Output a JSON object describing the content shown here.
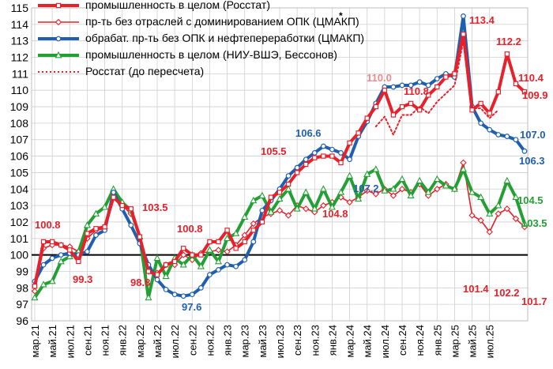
{
  "chart_data": {
    "type": "line",
    "x_labels": [
      "мар.21",
      "май.21",
      "июл.21",
      "сен.21",
      "ноя.21",
      "янв.22",
      "мар.22",
      "май.22",
      "июл.22",
      "сен.22",
      "ноя.22",
      "янв.23",
      "мар.23",
      "май.23",
      "июл.23",
      "сен.23",
      "ноя.23",
      "янв.24",
      "мар.24",
      "май.24",
      "июл.24",
      "сен.24",
      "ноя.24",
      "янв.25",
      "мар.25",
      "май.25",
      "июл.25"
    ],
    "ylim": [
      96,
      115
    ],
    "yticks": [
      96,
      97,
      98,
      99,
      100,
      101,
      102,
      103,
      104,
      105,
      106,
      107,
      108,
      109,
      110,
      111,
      112,
      113,
      114,
      115
    ],
    "grid": true,
    "reference_line": 100,
    "legend_position": "top-left",
    "series": [
      {
        "name": "промышленность в целом (Росстат)",
        "color": "#e8202a",
        "style": "solid-thick",
        "marker": "square",
        "values": [
          98.1,
          100.8,
          100.8,
          100.6,
          100.3,
          99.6,
          101.3,
          101.6,
          101.7,
          103.5,
          103.0,
          102.8,
          101.1,
          99.0,
          98.8,
          99.4,
          99.6,
          100.4,
          100.0,
          100.0,
          100.8,
          100.8,
          101.5,
          100.4,
          100.8,
          101.5,
          102.0,
          103.5,
          103.8,
          104.3,
          105.0,
          105.5,
          105.9,
          106.0,
          106.0,
          105.6,
          106.8,
          107.4,
          108.3,
          109.0,
          110.0,
          108.5,
          109.0,
          109.2,
          108.8,
          109.7,
          110.2,
          110.8,
          111.0,
          113.4,
          108.8,
          109.2,
          108.6,
          109.9,
          112.2,
          110.4,
          109.9
        ]
      },
      {
        "name": "пр-ть без отраслей с доминированием ОПК (ЦМАКП)",
        "color": "#e8202a",
        "style": "solid-thin",
        "marker": "diamond",
        "values": [
          97.8,
          100.4,
          100.6,
          100.6,
          100.5,
          100.2,
          101.0,
          101.5,
          101.6,
          103.7,
          103.0,
          102.5,
          101.0,
          99.0,
          98.9,
          99.4,
          99.4,
          100.0,
          99.7,
          100.1,
          100.2,
          100.3,
          100.2,
          100.6,
          101.2,
          101.9,
          102.3,
          102.5,
          102.7,
          102.4,
          103.0,
          102.8,
          102.6,
          103.0,
          103.2,
          103.5,
          103.2,
          103.5,
          103.9,
          103.7,
          104.0,
          103.6,
          104.0,
          103.8,
          104.3,
          103.6,
          104.0,
          104.3,
          104.0,
          105.6,
          102.4,
          102.1,
          101.4,
          102.5,
          102.8,
          102.2,
          101.7
        ]
      },
      {
        "name": "обрабат. пр-ть без ОПК и нефтепереработки (ЦМАКП)",
        "color": "#1f5fb0",
        "style": "solid-thick",
        "marker": "circle",
        "values": [
          98.4,
          99.4,
          99.8,
          100.0,
          100.1,
          100.0,
          100.2,
          101.2,
          101.5,
          103.8,
          102.8,
          101.8,
          100.7,
          99.4,
          98.5,
          97.9,
          97.6,
          97.5,
          97.6,
          98.0,
          98.8,
          99.1,
          99.4,
          99.3,
          99.7,
          100.8,
          102.7,
          103.3,
          104.0,
          104.8,
          105.3,
          105.8,
          106.2,
          106.6,
          106.4,
          106.2,
          105.8,
          107.2,
          108.1,
          109.2,
          110.2,
          110.2,
          110.3,
          110.3,
          110.5,
          110.3,
          110.7,
          111.0,
          110.8,
          114.5,
          109.0,
          108.0,
          107.6,
          107.3,
          107.2,
          107.0,
          106.3
        ]
      },
      {
        "name": "промышленность в целом (НИУ-ВШЭ, Бессонов)",
        "color": "#22a033",
        "style": "solid-thick",
        "marker": "triangle",
        "values": [
          97.4,
          98.2,
          98.4,
          99.6,
          99.9,
          100.2,
          101.8,
          102.5,
          102.9,
          104.0,
          103.2,
          102.7,
          101.1,
          97.4,
          99.8,
          98.7,
          99.8,
          99.4,
          100.0,
          99.3,
          100.3,
          99.6,
          101.0,
          101.3,
          102.3,
          103.3,
          103.6,
          102.6,
          103.4,
          104.0,
          102.8,
          103.8,
          102.8,
          104.0,
          102.9,
          103.8,
          104.8,
          103.4,
          104.9,
          105.2,
          103.9,
          104.0,
          104.6,
          103.6,
          104.5,
          103.8,
          104.6,
          104.2,
          104.0,
          105.2,
          103.8,
          103.5,
          102.5,
          103.0,
          104.5,
          103.5,
          101.9
        ]
      },
      {
        "name": "Росстат (до пересчета)",
        "color": "#e8202a",
        "style": "dotted",
        "marker": "none",
        "values": [
          null,
          null,
          null,
          null,
          null,
          null,
          null,
          null,
          null,
          null,
          null,
          null,
          null,
          null,
          null,
          null,
          null,
          null,
          null,
          null,
          null,
          null,
          null,
          null,
          null,
          null,
          null,
          null,
          null,
          null,
          null,
          null,
          null,
          null,
          null,
          null,
          null,
          null,
          null,
          107.8,
          108.4,
          107.3,
          108.5,
          108.5,
          109.0,
          108.6,
          109.3,
          109.8,
          110.3,
          113.0,
          108.9,
          108.9,
          108.3,
          108.8,
          null,
          null,
          null
        ]
      }
    ],
    "data_labels": [
      {
        "text": "100.8",
        "color": "#e8202a"
      },
      {
        "text": "99.3",
        "color": "#e8202a"
      },
      {
        "text": "103.5",
        "color": "#e8202a"
      },
      {
        "text": "98.8",
        "color": "#e8202a"
      },
      {
        "text": "100.8",
        "color": "#e8202a"
      },
      {
        "text": "97.6",
        "color": "#1f5fb0"
      },
      {
        "text": "105.5",
        "color": "#e8202a"
      },
      {
        "text": "106.6",
        "color": "#1f5fb0"
      },
      {
        "text": "104.8",
        "color": "#e8202a"
      },
      {
        "text": "107.2",
        "color": "#1f5fb0"
      },
      {
        "text": "110.0",
        "color": "#f08a8a"
      },
      {
        "text": "110.8",
        "color": "#e8202a"
      },
      {
        "text": "113.4",
        "color": "#e8202a"
      },
      {
        "text": "112.2",
        "color": "#e8202a"
      },
      {
        "text": "110.4",
        "color": "#e8202a"
      },
      {
        "text": "109.9",
        "color": "#e8202a"
      },
      {
        "text": "107.0",
        "color": "#1f5fb0"
      },
      {
        "text": "106.3",
        "color": "#1f5fb0"
      },
      {
        "text": "104.5",
        "color": "#22a033"
      },
      {
        "text": "103.5",
        "color": "#22a033"
      },
      {
        "text": "101.4",
        "color": "#e8202a"
      },
      {
        "text": "102.2",
        "color": "#e8202a"
      },
      {
        "text": "101.7",
        "color": "#e8202a"
      }
    ],
    "annotations": [
      {
        "text": "*",
        "color": "#000000"
      }
    ]
  }
}
